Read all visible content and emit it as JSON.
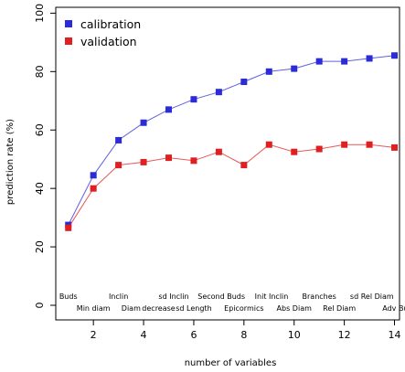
{
  "chart_data": {
    "type": "line",
    "title": "",
    "xlabel": "number of variables",
    "ylabel": "prediction rate (%)",
    "xlim": [
      0.5,
      14.2
    ],
    "ylim": [
      -5,
      102
    ],
    "xticks": [
      2,
      4,
      6,
      8,
      10,
      12,
      14
    ],
    "yticks": [
      0,
      20,
      40,
      60,
      80,
      100
    ],
    "grid": false,
    "legend": {
      "position": "top-left"
    },
    "x": [
      1,
      2,
      3,
      4,
      5,
      6,
      7,
      8,
      9,
      10,
      11,
      12,
      13,
      14
    ],
    "series": [
      {
        "name": "calibration",
        "color": "#2b2bd8",
        "values": [
          27.5,
          44.5,
          56.5,
          62.5,
          67,
          70.5,
          73,
          76.5,
          80,
          81,
          83.5,
          83.5,
          84.5,
          85.5
        ]
      },
      {
        "name": "validation",
        "color": "#e02020",
        "values": [
          26.5,
          40,
          48,
          49,
          50.5,
          49.5,
          52.5,
          48,
          55,
          52.5,
          53.5,
          55,
          55,
          54
        ]
      }
    ],
    "variable_labels": [
      {
        "x": 1,
        "row": 1,
        "text": "Buds"
      },
      {
        "x": 2,
        "row": 2,
        "text": "Min diam"
      },
      {
        "x": 3,
        "row": 1,
        "text": "Inclin"
      },
      {
        "x": 3.5,
        "row": 2,
        "text": "Diam"
      },
      {
        "x": 4.6,
        "row": 2,
        "text": "decrease"
      },
      {
        "x": 5.2,
        "row": 1,
        "text": "sd Inclin"
      },
      {
        "x": 6,
        "row": 2,
        "text": "sd Length"
      },
      {
        "x": 7.1,
        "row": 1,
        "text": "Second Buds"
      },
      {
        "x": 8,
        "row": 2,
        "text": "Epicormics"
      },
      {
        "x": 9.1,
        "row": 1,
        "text": "Init Inclin"
      },
      {
        "x": 10,
        "row": 2,
        "text": "Abs Diam"
      },
      {
        "x": 11,
        "row": 1,
        "text": "Branches"
      },
      {
        "x": 11.8,
        "row": 2,
        "text": "Rel Diam"
      },
      {
        "x": 13.1,
        "row": 1,
        "text": "sd Rel Diam"
      },
      {
        "x": 14.2,
        "row": 2,
        "text": "Adv Buds"
      }
    ]
  }
}
